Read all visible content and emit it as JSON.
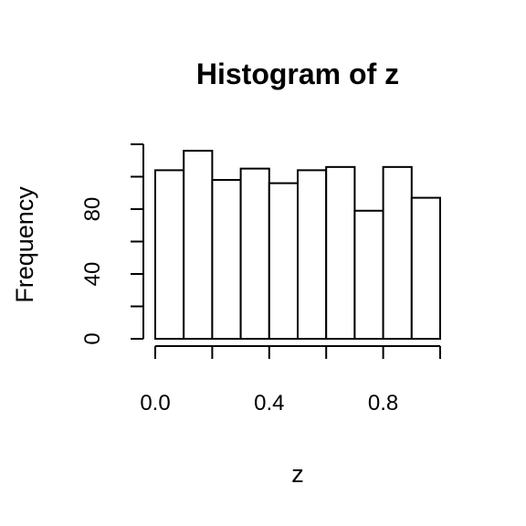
{
  "chart_data": {
    "type": "bar",
    "title": "Histogram of z",
    "xlabel": "z",
    "ylabel": "Frequency",
    "bins": [
      {
        "start": 0.0,
        "end": 0.1,
        "count": 104
      },
      {
        "start": 0.1,
        "end": 0.2,
        "count": 116
      },
      {
        "start": 0.2,
        "end": 0.3,
        "count": 98
      },
      {
        "start": 0.3,
        "end": 0.4,
        "count": 105
      },
      {
        "start": 0.4,
        "end": 0.5,
        "count": 96
      },
      {
        "start": 0.5,
        "end": 0.6,
        "count": 104
      },
      {
        "start": 0.6,
        "end": 0.7,
        "count": 106
      },
      {
        "start": 0.7,
        "end": 0.8,
        "count": 79
      },
      {
        "start": 0.8,
        "end": 0.9,
        "count": 106
      },
      {
        "start": 0.9,
        "end": 1.0,
        "count": 87
      }
    ],
    "xlim": [
      0,
      1
    ],
    "ylim": [
      0,
      120
    ],
    "x_ticks": [
      0.0,
      0.2,
      0.4,
      0.6,
      0.8,
      1.0
    ],
    "x_tick_labels": [
      "0.0",
      "0.4",
      "0.8"
    ],
    "x_tick_label_values": [
      0.0,
      0.4,
      0.8
    ],
    "y_ticks": [
      0,
      20,
      40,
      60,
      80,
      100,
      120
    ],
    "y_tick_labels": [
      "0",
      "40",
      "80"
    ],
    "y_tick_label_values": [
      0,
      40,
      80
    ],
    "grid": false,
    "legend": "none",
    "colors": {
      "bar_fill": "#ffffff",
      "stroke": "#000000",
      "background": "#ffffff"
    }
  }
}
